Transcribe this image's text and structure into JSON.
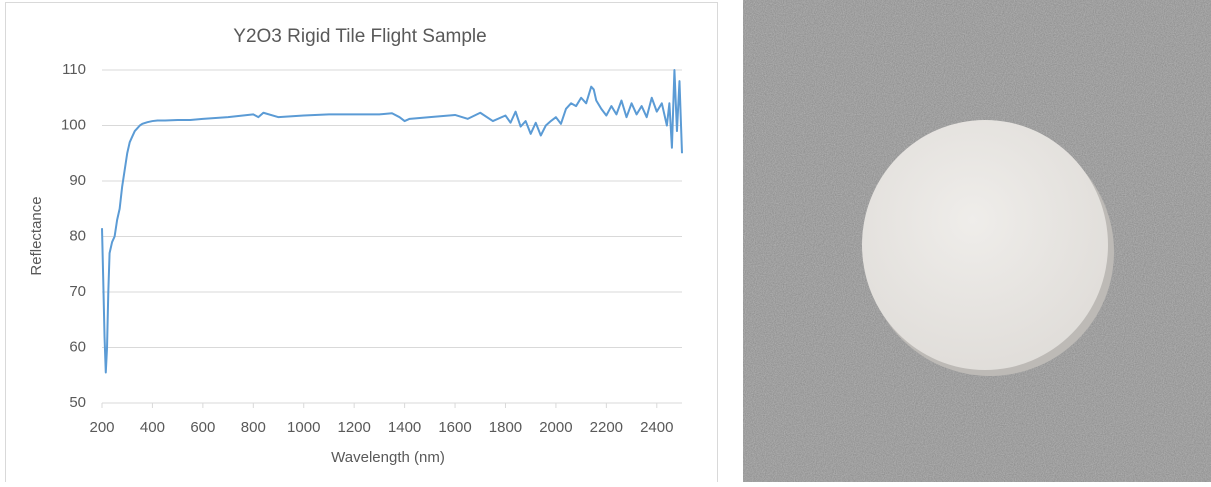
{
  "chart_data": {
    "type": "line",
    "title": "Y2O3 Rigid Tile Flight Sample",
    "x_label": "Wavelength (nm)",
    "y_label": "Reflectance",
    "x": [
      200,
      205,
      210,
      215,
      220,
      225,
      230,
      240,
      250,
      260,
      270,
      280,
      290,
      300,
      310,
      320,
      330,
      340,
      350,
      360,
      380,
      400,
      420,
      450,
      500,
      550,
      600,
      700,
      800,
      820,
      840,
      900,
      1000,
      1100,
      1200,
      1300,
      1350,
      1380,
      1400,
      1420,
      1500,
      1600,
      1650,
      1700,
      1750,
      1800,
      1820,
      1840,
      1860,
      1880,
      1900,
      1920,
      1940,
      1960,
      1980,
      2000,
      2020,
      2040,
      2060,
      2080,
      2100,
      2120,
      2140,
      2150,
      2160,
      2180,
      2200,
      2220,
      2240,
      2260,
      2280,
      2300,
      2320,
      2340,
      2360,
      2380,
      2400,
      2420,
      2440,
      2450,
      2460,
      2470,
      2480,
      2490,
      2500
    ],
    "series": [
      {
        "color": "#5b9bd5",
        "values": [
          81.5,
          72,
          62,
          55.5,
          60,
          70,
          77,
          79,
          80,
          83,
          85,
          89,
          92,
          95,
          97,
          98,
          99,
          99.5,
          100,
          100.3,
          100.6,
          100.8,
          100.9,
          100.9,
          101,
          101,
          101.2,
          101.5,
          102,
          101.5,
          102.3,
          101.5,
          101.8,
          102,
          102,
          102,
          102.2,
          101.5,
          100.8,
          101.2,
          101.5,
          101.9,
          101.2,
          102.3,
          100.8,
          101.8,
          100.5,
          102.5,
          99.8,
          100.8,
          98.5,
          100.5,
          98.2,
          100,
          100.8,
          101.5,
          100.3,
          103,
          104,
          103.5,
          105,
          104,
          107,
          106.5,
          104.5,
          103,
          101.8,
          103.5,
          102,
          104.5,
          101.5,
          104,
          102,
          103.5,
          101.5,
          105,
          102.5,
          104,
          100,
          104,
          96,
          110,
          99,
          108,
          95
        ]
      }
    ],
    "xlim": [
      200,
      2500
    ],
    "ylim": [
      50,
      110
    ],
    "xticks": [
      200,
      400,
      600,
      800,
      1000,
      1200,
      1400,
      1600,
      1800,
      2000,
      2200,
      2400
    ],
    "yticks": [
      50,
      60,
      70,
      80,
      90,
      100,
      110
    ],
    "grid": true
  }
}
